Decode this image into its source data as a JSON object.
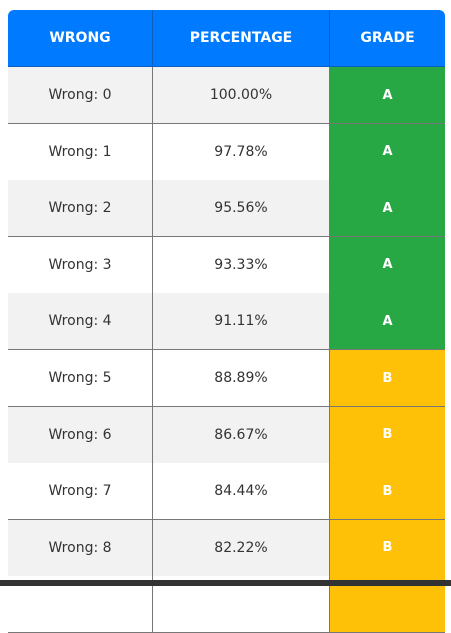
{
  "table": {
    "header": [
      "WRONG",
      "PERCENTAGE",
      "GRADE"
    ],
    "rows": [
      [
        "Wrong: 0",
        "100.00%",
        "A"
      ],
      [
        "Wrong: 1",
        "97.78%",
        "A"
      ],
      [
        "Wrong: 2",
        "95.56%",
        "A"
      ],
      [
        "Wrong: 3",
        "93.33%",
        "A"
      ],
      [
        "Wrong: 4",
        "91.11%",
        "A"
      ],
      [
        "Wrong: 5",
        "88.89%",
        "B"
      ],
      [
        "Wrong: 6",
        "86.67%",
        "B"
      ],
      [
        "Wrong: 7",
        "84.44%",
        "B"
      ],
      [
        "Wrong: 8",
        "82.22%",
        "B"
      ]
    ],
    "grade_colors": {
      "A": "#28a745",
      "B": "#ffc107"
    },
    "row_colors": [
      "#f2f2f2",
      "#ffffff"
    ]
  }
}
